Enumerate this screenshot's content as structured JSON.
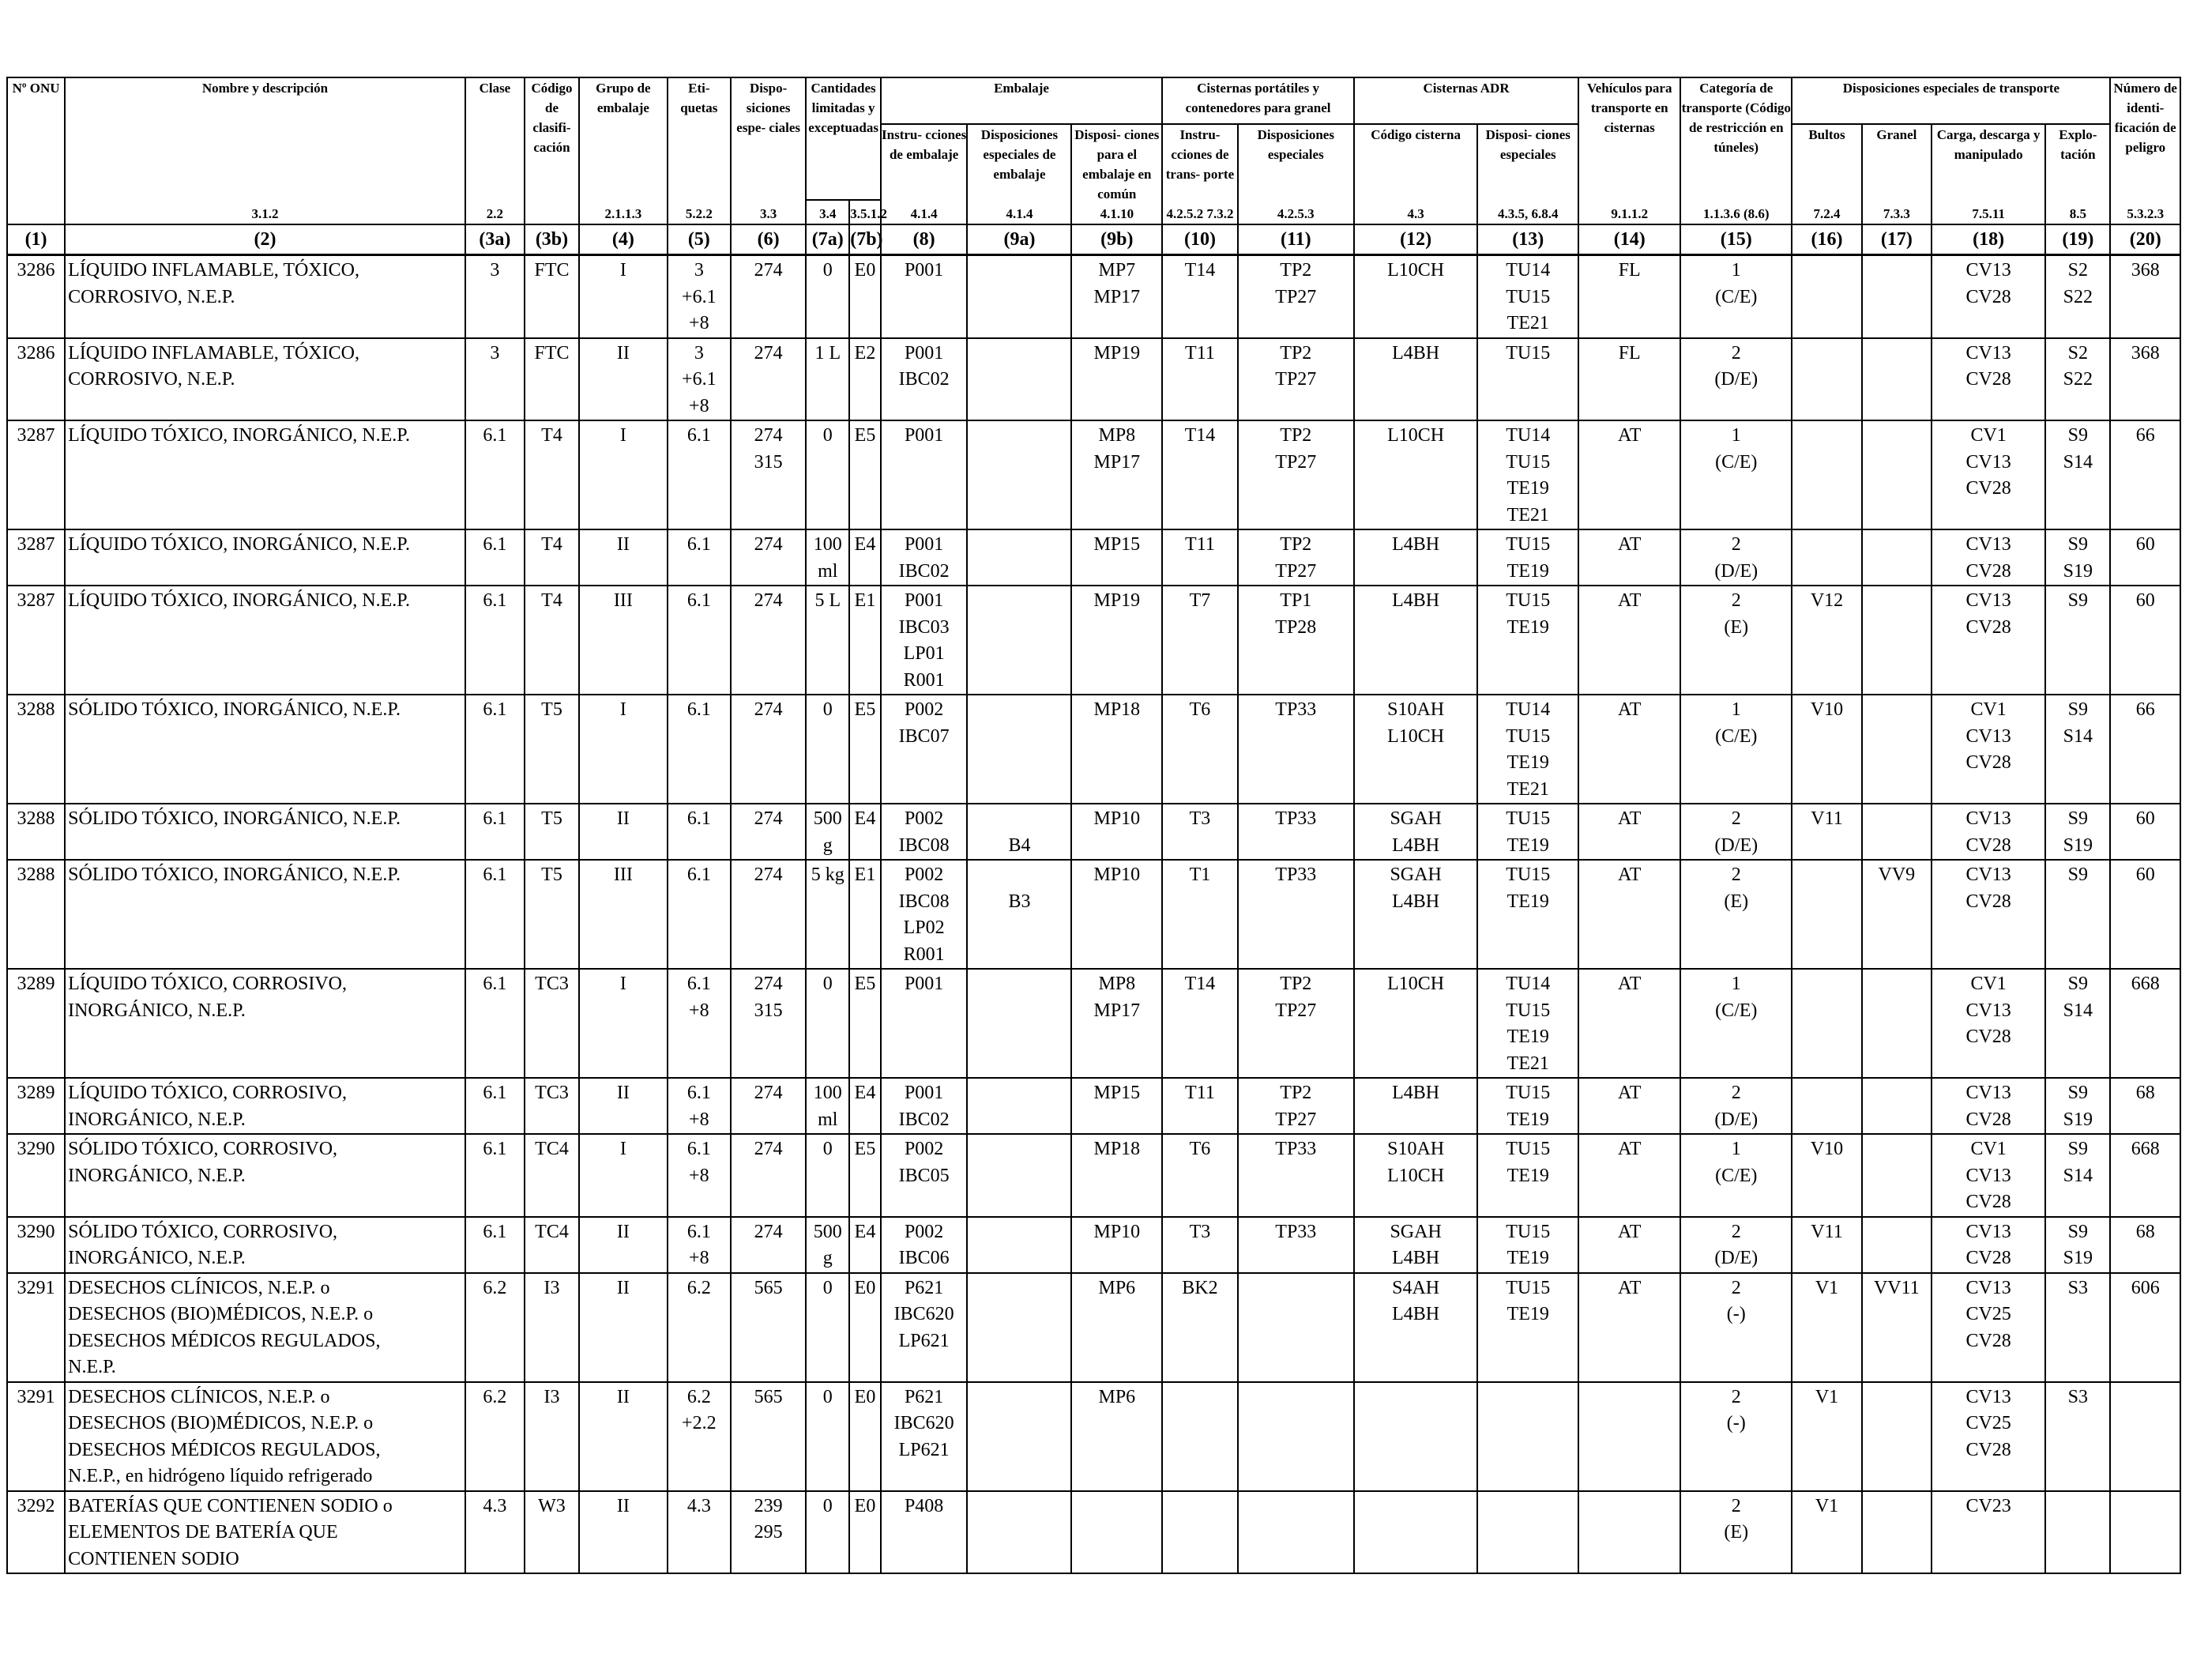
{
  "header_columns": [
    {
      "key": "onu",
      "title": "Nº ONU",
      "ref": ""
    },
    {
      "key": "name",
      "title": "Nombre y descripción",
      "ref": "3.1.2"
    },
    {
      "key": "class",
      "title": "Clase",
      "ref": "2.2"
    },
    {
      "key": "classcode",
      "title": "Código de clasifi- cación",
      "ref": ""
    },
    {
      "key": "pg",
      "title": "Grupo de embalaje",
      "ref": "2.1.1.3"
    },
    {
      "key": "labels",
      "title": "Eti- quetas",
      "ref": "5.2.2"
    },
    {
      "key": "sp",
      "title": "Dispo- siciones espe- ciales",
      "ref": "3.3"
    }
  ],
  "group_headers": {
    "quantities": "Cantidades limitadas y exceptuadas",
    "quantities_refs": [
      "3.4",
      "3.5.1.2"
    ],
    "packaging": "Embalaje",
    "portable": "Cisternas portátiles y contenedores para granel",
    "adr": "Cisternas ADR",
    "vehicles": "Vehículos para transporte en cisternas",
    "vehicles_ref": "9.1.1.2",
    "category": "Categoría de transporte (Código de restricción en túneles)",
    "category_ref": "1.1.3.6 (8.6)",
    "special_transport": "Disposiciones especiales de transporte",
    "hazard_id": "Número de identi- ficación de peligro",
    "hazard_id_ref": "5.3.2.3"
  },
  "sub_headers": {
    "pkg_instr": "Instru- cciones de embalaje",
    "pkg_instr_ref": "4.1.4",
    "pkg_special": "Disposiciones especiales de embalaje",
    "pkg_special_ref": "4.1.4",
    "pkg_mixed": "Disposi- ciones para el embalaje en común",
    "pkg_mixed_ref": "4.1.10",
    "pt_instr": "Instru- cciones de trans- porte",
    "pt_instr_ref": "4.2.5.2 7.3.2",
    "pt_special": "Disposiciones especiales",
    "pt_special_ref": "4.2.5.3",
    "adr_code": "Código cisterna",
    "adr_code_ref": "4.3",
    "adr_special": "Disposi- ciones especiales",
    "adr_special_ref": "4.3.5, 6.8.4",
    "bultos": "Bultos",
    "bultos_ref": "7.2.4",
    "granel": "Granel",
    "granel_ref": "7.3.3",
    "carga": "Carga, descarga y manipulado",
    "carga_ref": "7.5.11",
    "explo": "Explo- tación",
    "explo_ref": "8.5"
  },
  "column_numbers": [
    "(1)",
    "(2)",
    "(3a)",
    "(3b)",
    "(4)",
    "(5)",
    "(6)",
    "(7a)",
    "(7b)",
    "(8)",
    "(9a)",
    "(9b)",
    "(10)",
    "(11)",
    "(12)",
    "(13)",
    "(14)",
    "(15)",
    "(16)",
    "(17)",
    "(18)",
    "(19)",
    "(20)"
  ],
  "rows": [
    {
      "c": [
        "3286",
        [
          "LÍQUIDO INFLAMABLE, TÓXICO,",
          "CORROSIVO, N.E.P."
        ],
        "3",
        "FTC",
        "I",
        [
          "3",
          "+6.1",
          "+8"
        ],
        "274",
        "0",
        "E0",
        "P001",
        "",
        [
          "MP7",
          "MP17"
        ],
        "T14",
        [
          "TP2",
          "TP27"
        ],
        "L10CH",
        [
          "TU14",
          "TU15",
          "TE21"
        ],
        "FL",
        [
          "1",
          "(C/E)"
        ],
        "",
        "",
        [
          "CV13",
          "CV28"
        ],
        [
          "S2",
          "S22"
        ],
        "368"
      ],
      "h": 104
    },
    {
      "c": [
        "3286",
        [
          "LÍQUIDO INFLAMABLE, TÓXICO,",
          "CORROSIVO, N.E.P."
        ],
        "3",
        "FTC",
        "II",
        [
          "3",
          "+6.1",
          "+8"
        ],
        "274",
        "1 L",
        "E2",
        [
          "P001",
          "IBC02"
        ],
        "",
        "MP19",
        "T11",
        [
          "TP2",
          "TP27"
        ],
        "L4BH",
        "TU15",
        "FL",
        [
          "2",
          "(D/E)"
        ],
        "",
        "",
        [
          "CV13",
          "CV28"
        ],
        [
          "S2",
          "S22"
        ],
        "368"
      ],
      "h": 104
    },
    {
      "c": [
        "3287",
        [
          "LÍQUIDO TÓXICO, INORGÁNICO, N.E.P."
        ],
        "6.1",
        "T4",
        "I",
        "6.1",
        [
          "274",
          "315"
        ],
        "0",
        "E5",
        "P001",
        "",
        [
          "MP8",
          "MP17"
        ],
        "T14",
        [
          "TP2",
          "TP27"
        ],
        "L10CH",
        [
          "TU14",
          "TU15",
          "TE19",
          "TE21"
        ],
        "AT",
        [
          "1",
          "(C/E)"
        ],
        "",
        "",
        [
          "CV1",
          "CV13",
          "CV28"
        ],
        [
          "S9",
          "S14"
        ],
        "66"
      ],
      "h": 138
    },
    {
      "c": [
        "3287",
        [
          "LÍQUIDO TÓXICO, INORGÁNICO, N.E.P."
        ],
        "6.1",
        "T4",
        "II",
        "6.1",
        "274",
        [
          "100",
          "ml"
        ],
        "E4",
        [
          "P001",
          "IBC02"
        ],
        "",
        "MP15",
        "T11",
        [
          "TP2",
          "TP27"
        ],
        "L4BH",
        [
          "TU15",
          "TE19"
        ],
        "AT",
        [
          "2",
          "(D/E)"
        ],
        "",
        "",
        [
          "CV13",
          "CV28"
        ],
        [
          "S9",
          "S19"
        ],
        "60"
      ],
      "h": 69
    },
    {
      "c": [
        "3287",
        [
          "LÍQUIDO TÓXICO, INORGÁNICO, N.E.P."
        ],
        "6.1",
        "T4",
        "III",
        "6.1",
        "274",
        "5 L",
        "E1",
        [
          "P001",
          "IBC03",
          "LP01",
          "R001"
        ],
        "",
        "MP19",
        "T7",
        [
          "TP1",
          "TP28"
        ],
        "L4BH",
        [
          "TU15",
          "TE19"
        ],
        "AT",
        [
          "2",
          "(E)"
        ],
        "V12",
        "",
        [
          "CV13",
          "CV28"
        ],
        "S9",
        "60"
      ],
      "h": 138
    },
    {
      "c": [
        "3288",
        [
          "SÓLIDO TÓXICO, INORGÁNICO, N.E.P."
        ],
        "6.1",
        "T5",
        "I",
        "6.1",
        "274",
        "0",
        "E5",
        [
          "P002",
          "IBC07"
        ],
        "",
        "MP18",
        "T6",
        "TP33",
        [
          "S10AH",
          "L10CH"
        ],
        [
          "TU14",
          "TU15",
          "TE19",
          "TE21"
        ],
        "AT",
        [
          "1",
          "(C/E)"
        ],
        "V10",
        "",
        [
          "CV1",
          "CV13",
          "CV28"
        ],
        [
          "S9",
          "S14"
        ],
        "66"
      ],
      "h": 138
    },
    {
      "c": [
        "3288",
        [
          "SÓLIDO TÓXICO, INORGÁNICO, N.E.P."
        ],
        "6.1",
        "T5",
        "II",
        "6.1",
        "274",
        [
          "500",
          "g"
        ],
        "E4",
        [
          "P002",
          "IBC08"
        ],
        [
          "",
          "B4"
        ],
        "MP10",
        "T3",
        "TP33",
        [
          "SGAH",
          "L4BH"
        ],
        [
          "TU15",
          "TE19"
        ],
        "AT",
        [
          "2",
          "(D/E)"
        ],
        "V11",
        "",
        [
          "CV13",
          "CV28"
        ],
        [
          "S9",
          "S19"
        ],
        "60"
      ],
      "h": 69
    },
    {
      "c": [
        "3288",
        [
          "SÓLIDO TÓXICO, INORGÁNICO, N.E.P."
        ],
        "6.1",
        "T5",
        "III",
        "6.1",
        "274",
        "5 kg",
        "E1",
        [
          "P002",
          "IBC08",
          "LP02",
          "R001"
        ],
        [
          "",
          "B3"
        ],
        "MP10",
        "T1",
        "TP33",
        [
          "SGAH",
          "L4BH"
        ],
        [
          "TU15",
          "TE19"
        ],
        "AT",
        [
          "2",
          "(E)"
        ],
        "",
        "VV9",
        [
          "CV13",
          "CV28"
        ],
        "S9",
        "60"
      ],
      "h": 138
    },
    {
      "c": [
        "3289",
        [
          "LÍQUIDO TÓXICO, CORROSIVO,",
          "INORGÁNICO, N.E.P."
        ],
        "6.1",
        "TC3",
        "I",
        [
          "6.1",
          "+8"
        ],
        [
          "274",
          "315"
        ],
        "0",
        "E5",
        "P001",
        "",
        [
          "MP8",
          "MP17"
        ],
        "T14",
        [
          "TP2",
          "TP27"
        ],
        "L10CH",
        [
          "TU14",
          "TU15",
          "TE19",
          "TE21"
        ],
        "AT",
        [
          "1",
          "(C/E)"
        ],
        "",
        "",
        [
          "CV1",
          "CV13",
          "CV28"
        ],
        [
          "S9",
          "S14"
        ],
        "668"
      ],
      "h": 138
    },
    {
      "c": [
        "3289",
        [
          "LÍQUIDO TÓXICO, CORROSIVO,",
          "INORGÁNICO, N.E.P."
        ],
        "6.1",
        "TC3",
        "II",
        [
          "6.1",
          "+8"
        ],
        "274",
        [
          "100",
          "ml"
        ],
        "E4",
        [
          "P001",
          "IBC02"
        ],
        "",
        "MP15",
        "T11",
        [
          "TP2",
          "TP27"
        ],
        "L4BH",
        [
          "TU15",
          "TE19"
        ],
        "AT",
        [
          "2",
          "(D/E)"
        ],
        "",
        "",
        [
          "CV13",
          "CV28"
        ],
        [
          "S9",
          "S19"
        ],
        "68"
      ],
      "h": 69
    },
    {
      "c": [
        "3290",
        [
          "SÓLIDO TÓXICO, CORROSIVO,",
          "INORGÁNICO, N.E.P."
        ],
        "6.1",
        "TC4",
        "I",
        [
          "6.1",
          "+8"
        ],
        "274",
        "0",
        "E5",
        [
          "P002",
          "IBC05"
        ],
        "",
        "MP18",
        "T6",
        "TP33",
        [
          "S10AH",
          "L10CH"
        ],
        [
          "TU15",
          "TE19"
        ],
        "AT",
        [
          "1",
          "(C/E)"
        ],
        "V10",
        "",
        [
          "CV1",
          "CV13",
          "CV28"
        ],
        [
          "S9",
          "S14"
        ],
        "668"
      ],
      "h": 104
    },
    {
      "c": [
        "3290",
        [
          "SÓLIDO TÓXICO, CORROSIVO,",
          "INORGÁNICO, N.E.P."
        ],
        "6.1",
        "TC4",
        "II",
        [
          "6.1",
          "+8"
        ],
        "274",
        [
          "500",
          "g"
        ],
        "E4",
        [
          "P002",
          "IBC06"
        ],
        "",
        "MP10",
        "T3",
        "TP33",
        [
          "SGAH",
          "L4BH"
        ],
        [
          "TU15",
          "TE19"
        ],
        "AT",
        [
          "2",
          "(D/E)"
        ],
        "V11",
        "",
        [
          "CV13",
          "CV28"
        ],
        [
          "S9",
          "S19"
        ],
        "68"
      ],
      "h": 69
    },
    {
      "c": [
        "3291",
        [
          "DESECHOS CLÍNICOS, N.E.P. o",
          "DESECHOS (BIO)MÉDICOS, N.E.P. o",
          "DESECHOS MÉDICOS REGULADOS,",
          "N.E.P."
        ],
        "6.2",
        "I3",
        "II",
        "6.2",
        "565",
        "0",
        "E0",
        [
          "P621",
          "IBC620",
          "LP621"
        ],
        "",
        "MP6",
        "BK2",
        "",
        [
          "S4AH",
          "L4BH"
        ],
        [
          "TU15",
          "TE19"
        ],
        "AT",
        [
          "2",
          "(-)"
        ],
        "V1",
        "VV11",
        [
          "CV13",
          "CV25",
          "CV28"
        ],
        "S3",
        "606"
      ],
      "h": 138
    },
    {
      "c": [
        "3291",
        [
          "DESECHOS CLÍNICOS, N.E.P. o",
          "DESECHOS (BIO)MÉDICOS, N.E.P. o",
          "DESECHOS MÉDICOS REGULADOS,",
          "N.E.P., en hidrógeno líquido refrigerado"
        ],
        "6.2",
        "I3",
        "II",
        [
          "6.2",
          "+2.2"
        ],
        "565",
        "0",
        "E0",
        [
          "P621",
          "IBC620",
          "LP621"
        ],
        "",
        "MP6",
        "",
        "",
        "",
        "",
        "",
        [
          "2",
          "(-)"
        ],
        "V1",
        "",
        [
          "CV13",
          "CV25",
          "CV28"
        ],
        "S3",
        ""
      ],
      "h": 138
    },
    {
      "c": [
        "3292",
        [
          "BATERÍAS QUE CONTIENEN SODIO o",
          "ELEMENTOS DE BATERÍA QUE",
          "CONTIENEN SODIO"
        ],
        "4.3",
        "W3",
        "II",
        "4.3",
        [
          "239",
          "295"
        ],
        "0",
        "E0",
        "P408",
        "",
        "",
        "",
        "",
        "",
        "",
        "",
        [
          "2",
          "(E)"
        ],
        "V1",
        "",
        "CV23",
        "",
        ""
      ],
      "h": 104
    }
  ]
}
